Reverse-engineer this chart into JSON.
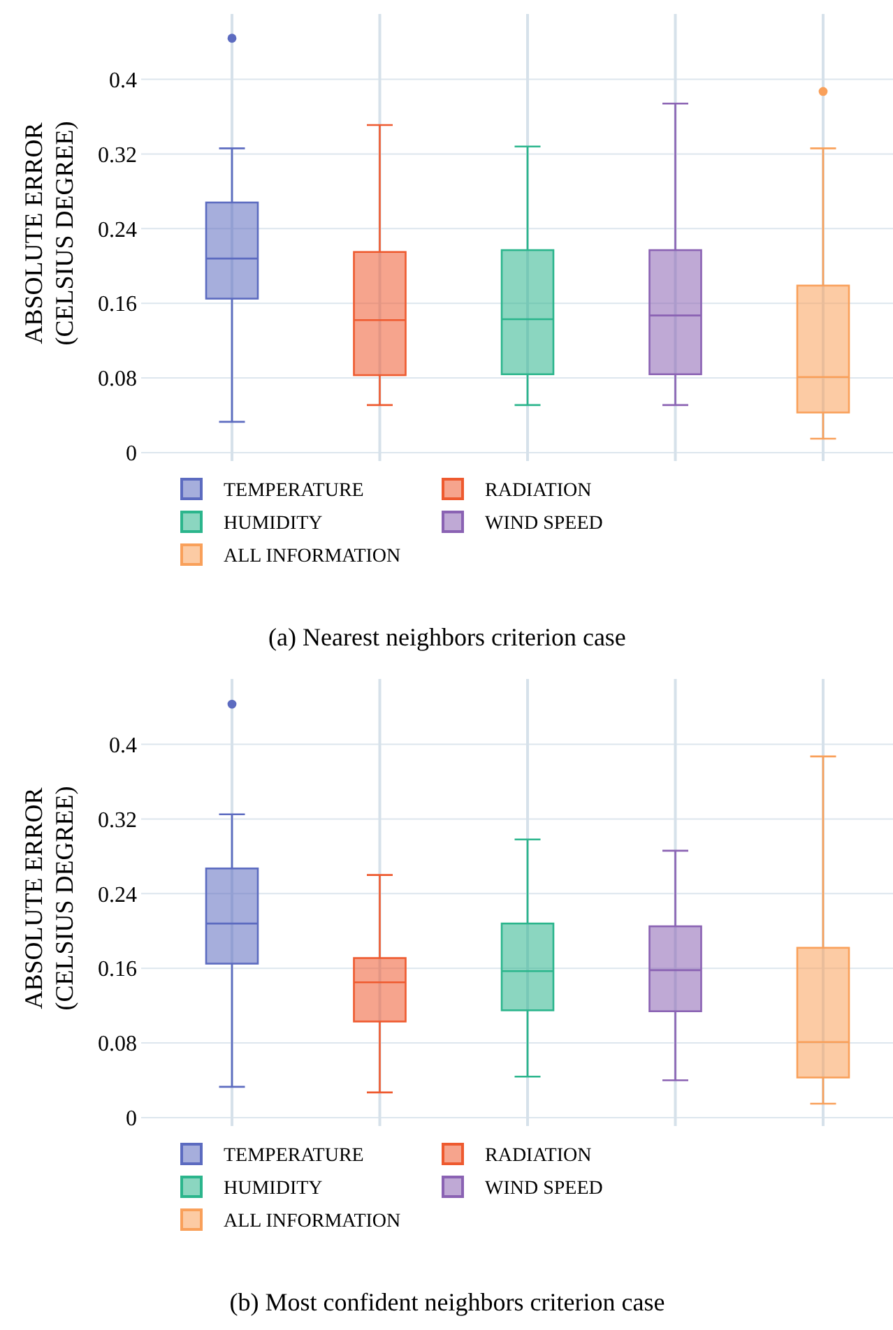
{
  "chart_data": [
    {
      "type": "box",
      "title": "(a) Nearest neighbors criterion case",
      "ylabel": "ABSOLUTE ERROR\n(CELSIUS DEGREE)",
      "categories": [
        null,
        null,
        null,
        null,
        null
      ],
      "ylim": [
        0,
        0.47
      ],
      "yticks": [
        0,
        0.08,
        0.16,
        0.24,
        0.32,
        0.4
      ],
      "grid": true,
      "legend": "bottom",
      "series": [
        {
          "name": "TEMPERATURE",
          "color": "#5c6bc0",
          "boxes": [
            {
              "low": 0.033,
              "q1": 0.165,
              "median": 0.208,
              "q3": 0.268,
              "high": 0.326,
              "outliers": [
                0.444
              ]
            },
            null,
            null,
            null,
            null
          ]
        },
        {
          "name": "RADIATION",
          "color": "#ee5a2f",
          "boxes": [
            null,
            {
              "low": 0.051,
              "q1": 0.083,
              "median": 0.142,
              "q3": 0.215,
              "high": 0.351
            },
            null,
            null,
            null
          ]
        },
        {
          "name": "HUMIDITY",
          "color": "#2bb58c",
          "boxes": [
            null,
            null,
            {
              "low": 0.051,
              "q1": 0.084,
              "median": 0.143,
              "q3": 0.217,
              "high": 0.328
            },
            null,
            null
          ]
        },
        {
          "name": "WIND SPEED",
          "color": "#8a62b3",
          "boxes": [
            null,
            null,
            null,
            {
              "low": 0.051,
              "q1": 0.084,
              "median": 0.147,
              "q3": 0.217,
              "high": 0.374
            },
            null
          ]
        },
        {
          "name": "ALL INFORMATION",
          "color": "#f9a05a",
          "boxes": [
            null,
            null,
            null,
            null,
            {
              "low": 0.015,
              "q1": 0.043,
              "median": 0.081,
              "q3": 0.179,
              "high": 0.326,
              "outliers": [
                0.387
              ]
            }
          ]
        }
      ]
    },
    {
      "type": "box",
      "title": "(b) Most confident neighbors criterion case",
      "ylabel": "ABSOLUTE ERROR\n(CELSIUS DEGREE)",
      "categories": [
        null,
        null,
        null,
        null,
        null
      ],
      "ylim": [
        0,
        0.47
      ],
      "yticks": [
        0,
        0.08,
        0.16,
        0.24,
        0.32,
        0.4
      ],
      "grid": true,
      "legend": "bottom",
      "series": [
        {
          "name": "TEMPERATURE",
          "color": "#5c6bc0",
          "boxes": [
            {
              "low": 0.033,
              "q1": 0.165,
              "median": 0.208,
              "q3": 0.267,
              "high": 0.325,
              "outliers": [
                0.443
              ]
            },
            null,
            null,
            null,
            null
          ]
        },
        {
          "name": "RADIATION",
          "color": "#ee5a2f",
          "boxes": [
            null,
            {
              "low": 0.027,
              "q1": 0.103,
              "median": 0.145,
              "q3": 0.171,
              "high": 0.26
            },
            null,
            null,
            null
          ]
        },
        {
          "name": "HUMIDITY",
          "color": "#2bb58c",
          "boxes": [
            null,
            null,
            {
              "low": 0.044,
              "q1": 0.115,
              "median": 0.157,
              "q3": 0.208,
              "high": 0.298
            },
            null,
            null
          ]
        },
        {
          "name": "WIND SPEED",
          "color": "#8a62b3",
          "boxes": [
            null,
            null,
            null,
            {
              "low": 0.04,
              "q1": 0.114,
              "median": 0.158,
              "q3": 0.205,
              "high": 0.286
            },
            null
          ]
        },
        {
          "name": "ALL INFORMATION",
          "color": "#f9a05a",
          "boxes": [
            null,
            null,
            null,
            null,
            {
              "low": 0.015,
              "q1": 0.043,
              "median": 0.081,
              "q3": 0.182,
              "high": 0.387
            }
          ]
        }
      ]
    }
  ]
}
